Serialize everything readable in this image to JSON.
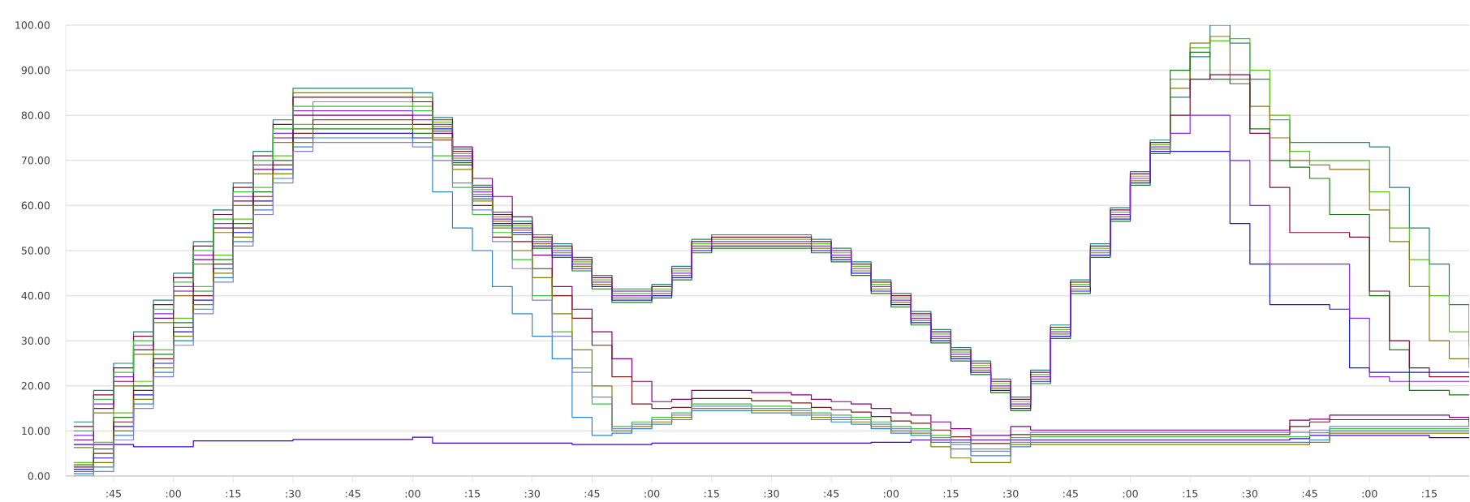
{
  "chart_data": {
    "type": "step",
    "grid": "y",
    "ylim": [
      0,
      100
    ],
    "categories": [
      null,
      null,
      ":45",
      null,
      null,
      ":00",
      null,
      null,
      ":15",
      null,
      null,
      ":30",
      null,
      null,
      ":45",
      null,
      null,
      ":00",
      null,
      null,
      ":15",
      null,
      null,
      ":30",
      null,
      null,
      ":45",
      null,
      null,
      ":00",
      null,
      null,
      ":15",
      null,
      null,
      ":30",
      null,
      null,
      ":45",
      null,
      null,
      ":00",
      null,
      null,
      ":15",
      null,
      null,
      ":30",
      null,
      null,
      ":45",
      null,
      null,
      ":00",
      null,
      null,
      ":15",
      null,
      null,
      ":30",
      null,
      null,
      ":45",
      null,
      null,
      ":00",
      null,
      null,
      ":15",
      null,
      null
    ],
    "yticks": [
      {
        "value": 0,
        "label": "0.00"
      },
      {
        "value": 10,
        "label": "10.00"
      },
      {
        "value": 20,
        "label": "20.00"
      },
      {
        "value": 30,
        "label": "30.00"
      },
      {
        "value": 40,
        "label": "40.00"
      },
      {
        "value": 50,
        "label": "50.00"
      },
      {
        "value": 60,
        "label": "60.00"
      },
      {
        "value": 70,
        "label": "70.00"
      },
      {
        "value": 80,
        "label": "80.00"
      },
      {
        "value": 90,
        "label": "90.00"
      },
      {
        "value": 100,
        "label": "100.00"
      }
    ],
    "series": [
      {
        "color": "#3b00d6",
        "values": [
          7,
          7,
          7,
          6.5,
          6.5,
          6.5,
          7.8,
          7.8,
          7.8,
          7.8,
          7.8,
          8.1,
          8.1,
          8.1,
          8.1,
          8.1,
          8.1,
          8.6,
          7.3,
          7.3,
          7.3,
          7.3,
          7.3,
          7.3,
          7.3,
          7.0,
          7.0,
          7.0,
          7.0,
          7.3,
          7.3,
          7.3,
          7.3,
          7.3,
          7.3,
          7.3,
          7.3,
          7.3,
          7.3,
          7.3,
          7.5,
          7.5,
          8.0,
          8.0,
          8.0,
          8.0,
          8.0,
          8.0,
          8.0,
          8.0,
          8.0,
          8.0,
          8.0,
          8.0,
          8.0,
          8.0,
          8.0,
          8.0,
          8.0,
          8.0,
          8.0,
          8.3,
          9.0,
          9.0,
          9.0,
          9.0,
          9.0,
          9.0,
          8.5,
          8.5,
          8.5
        ]
      },
      {
        "color": "#23807f",
        "values": [
          12,
          19,
          25,
          32,
          39,
          45,
          52,
          59,
          65,
          72,
          79,
          86,
          86,
          86,
          86,
          86,
          86,
          85,
          79.5,
          72.5,
          64.5,
          58.5,
          56.5,
          53.5,
          51.5,
          48.5,
          44.5,
          41.5,
          41.5,
          42.5,
          46.5,
          52.5,
          53.5,
          53.5,
          53.5,
          53.5,
          53.5,
          52.5,
          50.5,
          47.5,
          43.5,
          40.5,
          36.5,
          32.5,
          28.5,
          25.5,
          21.5,
          17.5,
          23.5,
          33.5,
          43.5,
          51.5,
          59.5,
          67.5,
          74.5,
          84,
          93,
          100,
          96,
          88,
          79,
          74,
          74,
          74,
          74,
          73,
          64,
          55,
          47,
          38,
          29
        ]
      },
      {
        "color": "#5cc21c",
        "values": [
          3,
          7.5,
          14,
          21,
          28,
          35,
          42,
          49,
          57,
          64,
          71,
          78,
          83,
          83,
          83,
          83,
          83,
          82,
          78.5,
          71.5,
          63.5,
          57.5,
          55.5,
          52.5,
          50.5,
          47.5,
          43.5,
          40.5,
          40.5,
          41.5,
          45.5,
          51.5,
          52.5,
          52.5,
          52.5,
          52.5,
          52.5,
          51.5,
          49.5,
          46.5,
          42.5,
          39.5,
          35.5,
          31.5,
          27.5,
          24.5,
          20.5,
          16.5,
          22.5,
          32.5,
          42.5,
          50.5,
          58.5,
          66.5,
          73.5,
          88,
          95,
          96.5,
          97,
          90,
          80,
          72,
          70,
          70,
          70,
          63,
          55,
          48,
          40,
          32,
          25
        ]
      },
      {
        "color": "#8a7a1f",
        "values": [
          6.3,
          14,
          20,
          27,
          34,
          40,
          47,
          54,
          60,
          67,
          74,
          85,
          85,
          85,
          85,
          85,
          85,
          84,
          77.5,
          70.5,
          62.5,
          56.5,
          54.5,
          51.5,
          49.5,
          46.5,
          42.5,
          39.5,
          39.5,
          40.5,
          44.5,
          50.5,
          51.5,
          51.5,
          51.5,
          51.5,
          51.5,
          50.5,
          48.5,
          45.5,
          41.5,
          38.5,
          34.5,
          30.5,
          26.5,
          23.5,
          19.5,
          15.5,
          21.5,
          31.5,
          41.5,
          49.5,
          57.5,
          65.5,
          72.5,
          86,
          96,
          97.5,
          88,
          82,
          75,
          70,
          69,
          68,
          68,
          59,
          52,
          42,
          30,
          26,
          24
        ]
      },
      {
        "color": "#1f7a1a",
        "values": [
          2.5,
          6,
          13,
          20,
          27,
          34,
          41,
          48,
          56,
          63,
          70,
          77,
          77,
          77,
          77,
          77,
          77,
          76,
          76.5,
          69.5,
          61.5,
          55.5,
          53.5,
          50.5,
          48.5,
          45.5,
          41.5,
          38.5,
          38.5,
          39.5,
          43.5,
          49.5,
          50.5,
          50.5,
          50.5,
          50.5,
          50.5,
          49.5,
          47.5,
          44.5,
          40.5,
          37.5,
          33.5,
          29.5,
          25.5,
          22.5,
          18.5,
          14.5,
          20.5,
          30.5,
          40.5,
          48.5,
          56.5,
          64.5,
          71.5,
          90,
          94,
          88,
          87,
          77,
          70,
          68.5,
          66,
          58,
          58,
          40,
          28,
          19,
          19,
          18,
          18
        ]
      },
      {
        "color": "#7a0f3a",
        "values": [
          11,
          18,
          24,
          31,
          38,
          44,
          51,
          58,
          64,
          71,
          78,
          84,
          84,
          84,
          84,
          84,
          84,
          83,
          79,
          72,
          64,
          58,
          56,
          53,
          51,
          48,
          44,
          41,
          41,
          42,
          46,
          52,
          53,
          53,
          53,
          53,
          53,
          52,
          50,
          47,
          43,
          40,
          36,
          32,
          28,
          25,
          21,
          17,
          23,
          33,
          43,
          51,
          59,
          67,
          74,
          80,
          88,
          89,
          89,
          76,
          64,
          54,
          54,
          54,
          53,
          41,
          30,
          24,
          22,
          22,
          22
        ]
      },
      {
        "color": "#1a1ad0",
        "values": [
          1.5,
          4,
          11,
          18,
          25,
          32,
          39,
          46,
          54,
          61,
          68,
          75,
          76,
          76,
          76,
          76,
          76,
          75,
          77,
          70,
          62,
          56,
          54,
          51,
          49,
          46,
          42,
          39,
          39,
          40,
          44,
          50,
          51,
          51,
          51,
          51,
          51,
          50,
          48,
          45,
          41,
          38,
          34,
          30,
          26,
          23,
          19,
          15,
          21,
          31,
          41,
          49,
          57,
          65,
          72,
          72,
          72,
          72,
          56,
          47,
          38,
          38,
          38,
          37,
          24,
          23,
          23,
          23,
          23,
          23,
          23
        ]
      },
      {
        "color": "#8a2be2",
        "values": [
          9,
          16,
          22,
          29,
          36,
          42,
          49,
          56,
          62,
          69,
          76,
          81,
          81,
          81,
          81,
          81,
          81,
          80,
          78,
          71,
          63,
          57,
          55,
          52,
          50,
          47,
          43,
          40,
          40,
          41,
          45,
          51,
          52,
          52,
          52,
          52,
          52,
          51,
          49,
          46,
          42,
          39,
          35,
          31,
          27,
          24,
          20,
          16,
          22,
          32,
          42,
          50,
          58,
          66,
          73,
          76,
          80,
          80,
          70,
          60,
          47,
          47,
          47,
          47,
          35,
          22,
          21,
          21,
          21,
          21,
          21
        ]
      },
      {
        "color": "#2e86c9",
        "values": [
          0.5,
          2,
          9,
          16,
          23,
          30,
          37,
          44,
          52,
          59,
          66,
          73,
          75,
          75,
          75,
          75,
          75,
          74,
          63,
          55,
          50,
          42,
          36,
          31,
          26,
          13,
          9,
          9.5,
          10.5,
          11.5,
          12.5,
          14.5,
          14.5,
          14.5,
          14,
          14,
          13.5,
          12.5,
          12,
          11.5,
          10.5,
          9.5,
          9,
          7.5,
          6,
          4.5,
          4.5,
          6.5,
          7.5,
          7.5,
          7.5,
          7.5,
          7.5,
          7.5,
          7.5,
          7.5,
          7.5,
          7.5,
          7.5,
          7.5,
          7.5,
          7.5,
          8.0,
          10.0,
          10.0,
          10.0,
          10.0,
          10.0,
          10.0,
          10.0,
          10.0
        ]
      },
      {
        "color": "#800080",
        "values": [
          8,
          15,
          21,
          28,
          35,
          41,
          48,
          55,
          61,
          68,
          75,
          80,
          80,
          80,
          80,
          80,
          80,
          79,
          76,
          73,
          66,
          62,
          57.5,
          49,
          42,
          37,
          32,
          26,
          21,
          16.5,
          17,
          19,
          19,
          19,
          18.5,
          18.5,
          18,
          17,
          16.5,
          16,
          15,
          14,
          13.5,
          12,
          10.5,
          9,
          9,
          11,
          10.2,
          10.2,
          10.2,
          10.2,
          10.2,
          10.2,
          10.2,
          10.2,
          10.2,
          10.2,
          10.2,
          10.2,
          10.2,
          12.4,
          12.6,
          13.5,
          13.5,
          13.5,
          13.5,
          13.5,
          13.5,
          13.0,
          12.0
        ]
      },
      {
        "color": "#7a1c1c",
        "values": [
          2,
          5,
          12,
          19,
          26,
          33,
          40,
          47,
          55,
          62,
          69,
          76,
          79,
          79,
          79,
          79,
          79,
          78,
          74.5,
          69,
          60,
          53,
          52,
          46,
          40,
          35,
          29,
          22,
          16,
          15,
          15.2,
          17.2,
          17.2,
          17.2,
          16.7,
          16.7,
          16.2,
          15.2,
          14.7,
          14.2,
          13.2,
          12.2,
          11.7,
          10.2,
          8.7,
          7.2,
          7.2,
          9.2,
          9.2,
          9.2,
          9.2,
          9.2,
          9.2,
          9.2,
          9.2,
          9.2,
          9.2,
          9.2,
          9.2,
          9.2,
          9.2,
          11,
          12,
          12.5,
          12.5,
          12.5,
          12.5,
          12.5,
          12.5,
          12.5,
          11
        ]
      },
      {
        "color": "#3cc23c",
        "values": [
          10,
          17,
          23,
          30,
          37,
          43,
          50,
          57,
          63,
          70,
          77,
          82,
          82,
          82,
          82,
          82,
          82,
          81,
          71,
          64,
          58,
          54,
          48,
          40,
          32,
          24,
          16,
          11,
          12,
          13,
          14,
          16,
          16,
          16,
          15.5,
          15.5,
          15,
          14,
          13.5,
          13,
          12,
          11,
          10.5,
          9,
          7.5,
          6,
          6,
          8.5,
          8.7,
          8.7,
          8.7,
          8.7,
          8.7,
          8.7,
          8.7,
          8.7,
          8.7,
          8.7,
          8.7,
          8.7,
          8.7,
          8.7,
          9.6,
          10.5,
          10.5,
          10.5,
          10.5,
          10.5,
          10.5,
          10.5,
          10.5
        ]
      },
      {
        "color": "#808000",
        "values": [
          1,
          3,
          10,
          17,
          24,
          31,
          38,
          45,
          53,
          60,
          67,
          74,
          78,
          78,
          78,
          78,
          78,
          77,
          75,
          68,
          61,
          55,
          50,
          44,
          36,
          28,
          20,
          10,
          11,
          12,
          13,
          15,
          15,
          15,
          14.5,
          14.5,
          14,
          13,
          12.5,
          12,
          11,
          10,
          9.5,
          6.5,
          4,
          3,
          3,
          7,
          7.0,
          7.0,
          7.0,
          7.0,
          7.0,
          7.0,
          7.0,
          7.0,
          7.0,
          7.0,
          7.0,
          7.0,
          7.0,
          7.0,
          7.5,
          9.5,
          9.5,
          9.5,
          9.5,
          9.5,
          9.5,
          9.5,
          9.5
        ]
      },
      {
        "color": "#8080d0",
        "values": [
          0,
          1,
          8,
          15,
          22,
          29,
          36,
          43,
          51,
          58,
          65,
          72,
          74,
          74,
          74,
          74,
          74,
          73,
          70,
          65,
          59,
          52,
          46,
          39,
          31,
          23,
          17.5,
          10.5,
          11.5,
          12.5,
          13.5,
          15.5,
          15.5,
          15.5,
          15,
          15,
          14.5,
          13.5,
          13,
          12.5,
          11.5,
          10.5,
          10,
          8.5,
          7,
          5.5,
          5.5,
          7.5,
          9.7,
          9.7,
          9.7,
          9.7,
          9.7,
          9.7,
          9.7,
          9.7,
          9.7,
          9.7,
          9.7,
          9.7,
          9.7,
          9.7,
          10.2,
          11.0,
          11.0,
          11.0,
          11.0,
          11.0,
          11.0,
          11.0,
          11.0
        ]
      }
    ]
  }
}
